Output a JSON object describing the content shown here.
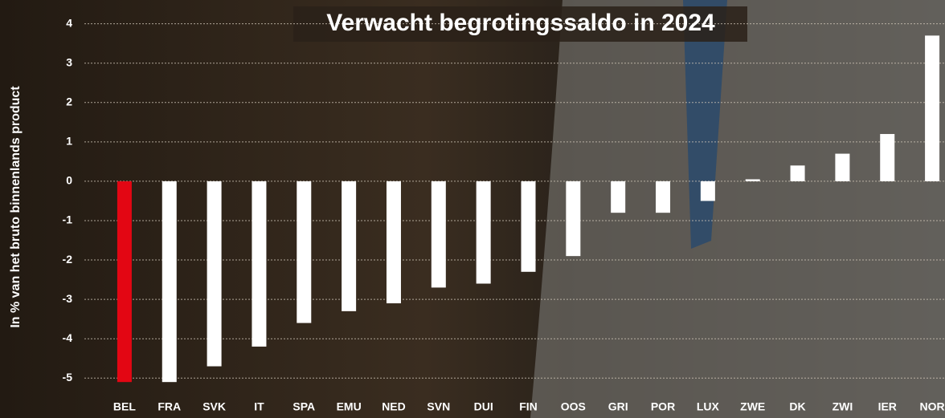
{
  "chart_data": {
    "type": "bar",
    "title": "Verwacht begrotingssaldo in 2024",
    "y_label": "In % van het bruto binnenlands product",
    "categories": [
      "BEL",
      "FRA",
      "SVK",
      "IT",
      "SPA",
      "EMU",
      "NED",
      "SVN",
      "DUI",
      "FIN",
      "OOS",
      "GRI",
      "POR",
      "LUX",
      "ZWE",
      "DK",
      "ZWI",
      "IER",
      "NOR"
    ],
    "values": [
      -5.1,
      -5.1,
      -4.7,
      -4.2,
      -3.6,
      -3.3,
      -3.1,
      -2.7,
      -2.6,
      -2.3,
      -1.9,
      -0.8,
      -0.8,
      -0.5,
      0.05,
      0.4,
      0.7,
      1.2,
      3.7
    ],
    "colors": [
      "#e30613",
      "#ffffff",
      "#ffffff",
      "#ffffff",
      "#ffffff",
      "#ffffff",
      "#ffffff",
      "#ffffff",
      "#ffffff",
      "#ffffff",
      "#ffffff",
      "#ffffff",
      "#ffffff",
      "#ffffff",
      "#ffffff",
      "#ffffff",
      "#ffffff",
      "#ffffff",
      "#ffffff"
    ],
    "ylim": [
      -5.3,
      4.4
    ],
    "yticks": [
      -5,
      -4,
      -3,
      -2,
      -1,
      0,
      1,
      2,
      3,
      4
    ],
    "grid": true
  }
}
